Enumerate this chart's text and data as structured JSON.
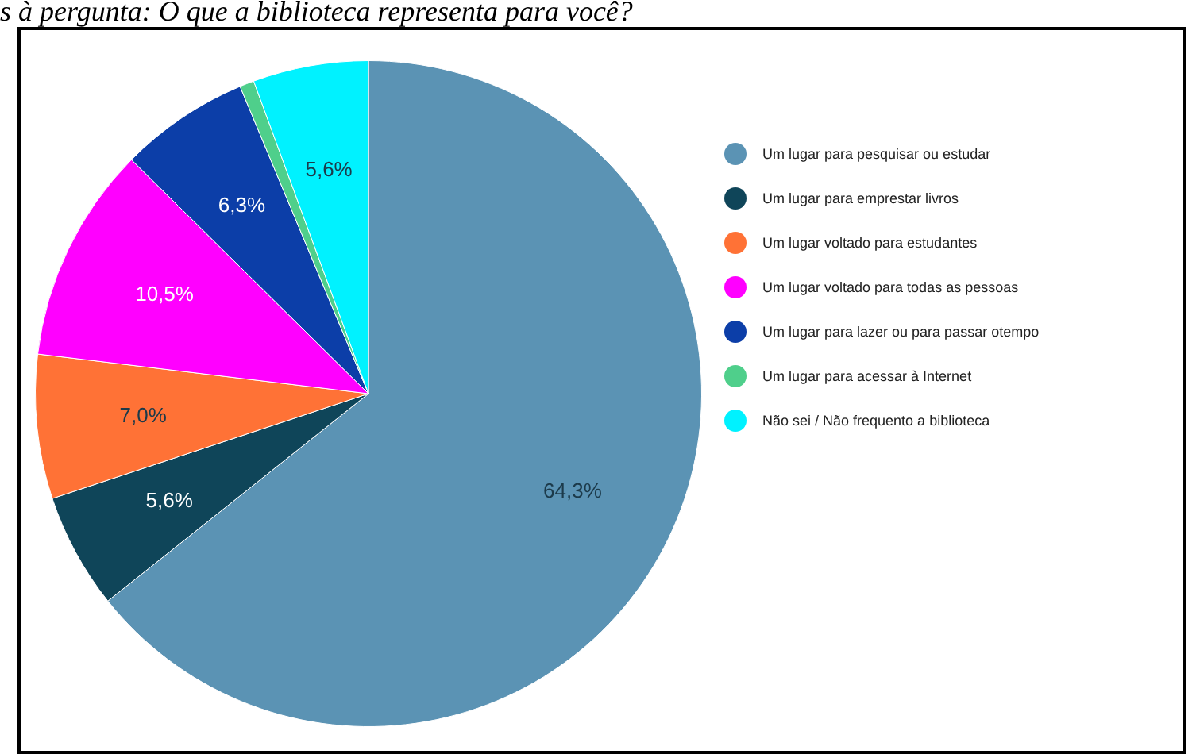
{
  "chart_data": {
    "type": "pie",
    "title": "s à pergunta: O que a biblioteca representa para você?",
    "categories": [
      "Um lugar para pesquisar ou estudar",
      "Um lugar para emprestar livros",
      "Um lugar voltado para estudantes",
      "Um lugar voltado para todas as pessoas",
      "Um lugar para lazer ou para passar otempo",
      "Um lugar para acessar à Internet",
      "Não sei / Não frequento a biblioteca"
    ],
    "values": [
      64.3,
      5.6,
      7.0,
      10.5,
      6.3,
      0.7,
      5.6
    ],
    "colors": [
      "#5b93b4",
      "#0f4559",
      "#ff7236",
      "#ff00ff",
      "#0c3ea8",
      "#4fcf8b",
      "#00f2ff"
    ],
    "value_labels": [
      "64,3%",
      "5,6%",
      "7,0%",
      "10,5%",
      "6,3%",
      null,
      "5,6%"
    ],
    "legend": "right"
  }
}
